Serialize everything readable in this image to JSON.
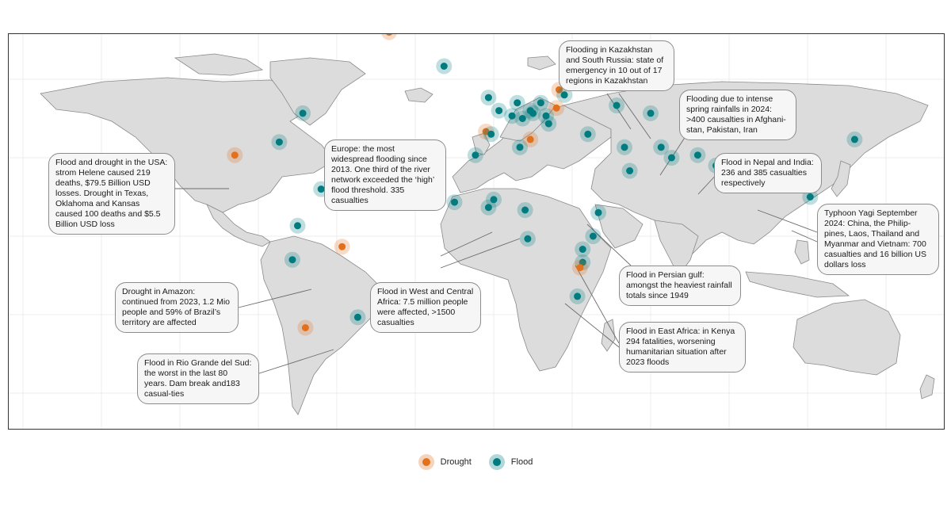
{
  "colors": {
    "drought": "#e2711d",
    "flood": "#007b7f",
    "land": "#dcdcdc",
    "border": "#8a8a8a"
  },
  "legend": {
    "drought_label": "Drought",
    "flood_label": "Flood"
  },
  "callouts": {
    "kazakhstan": "Flooding in Kazakhstan and South Russia: state of emergency in 10 out of 17 regions in Kazakhstan",
    "afghanistan": "Flooding due to intense spring rainfalls in 2024: >400 causalties in Afghani-stan, Pakistan, Iran",
    "usa": "Flood and drought in the USA: strom Helene caused 219 deaths, $79.5 Billion USD losses. Drought in Texas, Oklahoma and Kansas caused 100 deaths and $5.5 Billion USD loss",
    "europe": "Europe: the most widespread flooding since 2013. One third of the river network exceeded the ‘high’ flood threshold. 335 casualties",
    "nepal": "Flood in Nepal and India: 236 and 385 casualties respectively",
    "yagi": "Typhoon Yagi September 2024: China, the Philip-pines, Laos, Thailand and Myanmar and Vietnam: 700 casualties and 16 billion US dollars loss",
    "amazon": "Drought in Amazon: continued from 2023, 1.2 Mio people and 59% of Brazil’s territory are affected",
    "westafrica": "Flood in West and Central Africa: 7.5 million people were affected, >1500 casualties",
    "persian": "Flood in Persian gulf: amongst the heaviest rainfall totals since 1949",
    "eastafrica": "Flood in East Africa: in Kenya 294 fatalities, worsening humanitarian situation after 2023 floods",
    "riogrande": "Flood in Rio Grande del Sud: the worst in the last 80 years. Dam break and183 casual-ties"
  },
  "events": [
    {
      "type": "drought",
      "region": "Greenland",
      "lon": -40,
      "lat": 78
    },
    {
      "type": "flood",
      "region": "Iceland",
      "lon": -19,
      "lat": 65
    },
    {
      "type": "flood",
      "region": "Canada East",
      "lon": -73,
      "lat": 47
    },
    {
      "type": "flood",
      "region": "USA East",
      "lon": -82,
      "lat": 36
    },
    {
      "type": "drought",
      "region": "USA Plains",
      "lon": -99,
      "lat": 31
    },
    {
      "type": "flood",
      "region": "Caribbean",
      "lon": -66,
      "lat": 18
    },
    {
      "type": "flood",
      "region": "Colombia",
      "lon": -75,
      "lat": 4
    },
    {
      "type": "flood",
      "region": "Peru",
      "lon": -77,
      "lat": -9
    },
    {
      "type": "drought",
      "region": "Amazon",
      "lon": -58,
      "lat": -4
    },
    {
      "type": "drought",
      "region": "Chile",
      "lon": -72,
      "lat": -35
    },
    {
      "type": "flood",
      "region": "Rio Grande do Sul",
      "lon": -52,
      "lat": -31
    },
    {
      "type": "flood",
      "region": "UK",
      "lon": -2,
      "lat": 53
    },
    {
      "type": "flood",
      "region": "France",
      "lon": 2,
      "lat": 48
    },
    {
      "type": "flood",
      "region": "Germany",
      "lon": 9,
      "lat": 51
    },
    {
      "type": "flood",
      "region": "Poland",
      "lon": 18,
      "lat": 51
    },
    {
      "type": "flood",
      "region": "Central Europe",
      "lon": 14,
      "lat": 48
    },
    {
      "type": "flood",
      "region": "Switzerland",
      "lon": 7,
      "lat": 46
    },
    {
      "type": "flood",
      "region": "Austria",
      "lon": 15,
      "lat": 47
    },
    {
      "type": "flood",
      "region": "Hungary",
      "lon": 20,
      "lat": 46
    },
    {
      "type": "flood",
      "region": "Balkans",
      "lon": 21,
      "lat": 43
    },
    {
      "type": "flood",
      "region": "Italy North",
      "lon": 11,
      "lat": 45
    },
    {
      "type": "drought",
      "region": "Spain",
      "lon": -3,
      "lat": 40
    },
    {
      "type": "flood",
      "region": "Spain East",
      "lon": -1,
      "lat": 39
    },
    {
      "type": "drought",
      "region": "Sicily",
      "lon": 14,
      "lat": 37
    },
    {
      "type": "drought",
      "region": "Baltics",
      "lon": 25,
      "lat": 56
    },
    {
      "type": "flood",
      "region": "Belarus",
      "lon": 27,
      "lat": 54
    },
    {
      "type": "drought",
      "region": "Ukraine",
      "lon": 24,
      "lat": 49
    },
    {
      "type": "flood",
      "region": "Tunisia",
      "lon": 10,
      "lat": 34
    },
    {
      "type": "flood",
      "region": "Morocco",
      "lon": -7,
      "lat": 31
    },
    {
      "type": "flood",
      "region": "Senegal",
      "lon": -15,
      "lat": 13
    },
    {
      "type": "flood",
      "region": "Mali",
      "lon": 0,
      "lat": 14
    },
    {
      "type": "flood",
      "region": "Nigeria",
      "lon": -2,
      "lat": 11
    },
    {
      "type": "flood",
      "region": "Chad",
      "lon": 12,
      "lat": 10
    },
    {
      "type": "flood",
      "region": "Central Africa",
      "lon": 13,
      "lat": -1
    },
    {
      "type": "flood",
      "region": "Ethiopia",
      "lon": 40,
      "lat": 9
    },
    {
      "type": "flood",
      "region": "Kenya",
      "lon": 38,
      "lat": 0
    },
    {
      "type": "flood",
      "region": "Tanzania",
      "lon": 34,
      "lat": -5
    },
    {
      "type": "flood",
      "region": "Malawi",
      "lon": 34,
      "lat": -10
    },
    {
      "type": "drought",
      "region": "Zambia",
      "lon": 33,
      "lat": -12
    },
    {
      "type": "flood",
      "region": "Mozambique",
      "lon": 32,
      "lat": -23
    },
    {
      "type": "flood",
      "region": "Russia South",
      "lon": 47,
      "lat": 50
    },
    {
      "type": "flood",
      "region": "Kazakhstan",
      "lon": 60,
      "lat": 47
    },
    {
      "type": "flood",
      "region": "Turkey",
      "lon": 36,
      "lat": 39
    },
    {
      "type": "flood",
      "region": "Persian Gulf",
      "lon": 52,
      "lat": 25
    },
    {
      "type": "flood",
      "region": "Iran",
      "lon": 50,
      "lat": 34
    },
    {
      "type": "flood",
      "region": "Afghanistan",
      "lon": 64,
      "lat": 34
    },
    {
      "type": "flood",
      "region": "Pakistan",
      "lon": 68,
      "lat": 30
    },
    {
      "type": "flood",
      "region": "North India",
      "lon": 78,
      "lat": 31
    },
    {
      "type": "flood",
      "region": "Nepal",
      "lon": 85,
      "lat": 27
    },
    {
      "type": "flood",
      "region": "Myanmar",
      "lon": 96,
      "lat": 20
    },
    {
      "type": "flood",
      "region": "South China",
      "lon": 105,
      "lat": 21
    },
    {
      "type": "flood",
      "region": "China East",
      "lon": 112,
      "lat": 23
    },
    {
      "type": "flood",
      "region": "Philippines",
      "lon": 121,
      "lat": 15
    },
    {
      "type": "flood",
      "region": "Japan",
      "lon": 138,
      "lat": 37
    }
  ]
}
